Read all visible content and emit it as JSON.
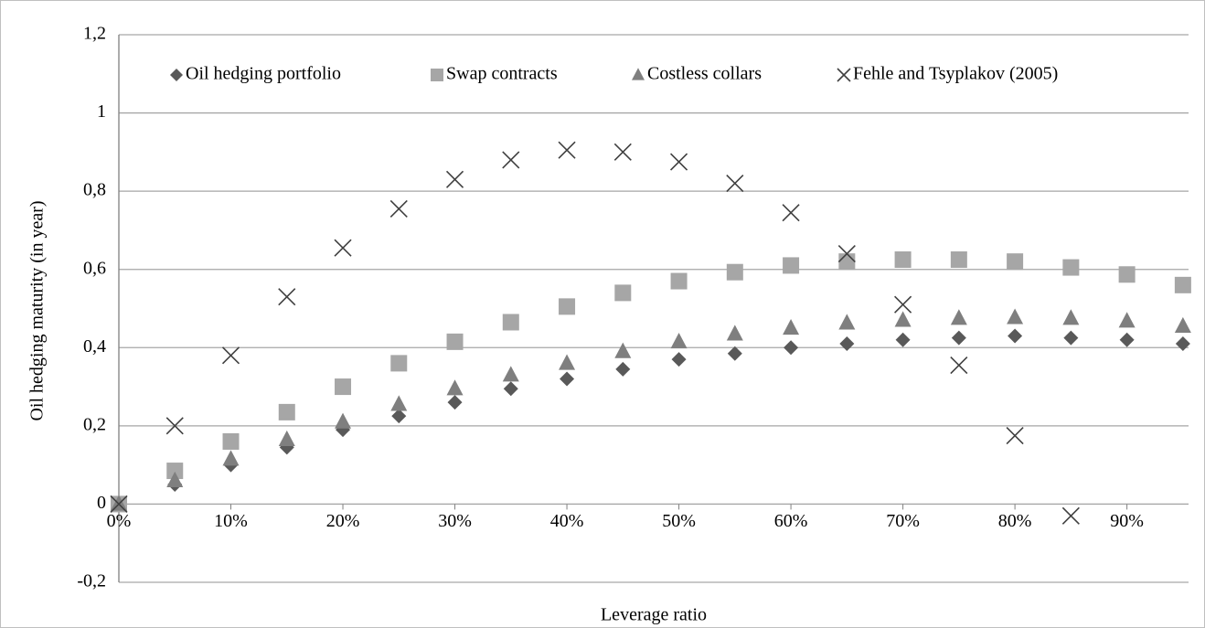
{
  "chart_data": {
    "type": "scatter",
    "xlabel": "Leverage ratio",
    "ylabel": "Oil hedging maturity (in year)",
    "x": [
      0,
      5,
      10,
      15,
      20,
      25,
      30,
      35,
      40,
      45,
      50,
      55,
      60,
      65,
      70,
      75,
      80,
      85,
      90,
      95
    ],
    "series": [
      {
        "name": "Oil hedging portfolio",
        "color": "#595959",
        "marker": "diamond",
        "values": [
          0,
          0.05,
          0.1,
          0.145,
          0.19,
          0.225,
          0.26,
          0.295,
          0.32,
          0.345,
          0.37,
          0.385,
          0.4,
          0.41,
          0.42,
          0.425,
          0.43,
          0.425,
          0.42,
          0.41
        ]
      },
      {
        "name": "Swap contracts",
        "color": "#a6a6a6",
        "marker": "square",
        "values": [
          0,
          0.085,
          0.16,
          0.235,
          0.3,
          0.36,
          0.415,
          0.465,
          0.505,
          0.54,
          0.57,
          0.593,
          0.61,
          0.62,
          0.625,
          0.625,
          0.62,
          0.605,
          0.587,
          0.56
        ]
      },
      {
        "name": "Costless collars",
        "color": "#7f7f7f",
        "marker": "triangle",
        "values": [
          0,
          0.06,
          0.115,
          0.165,
          0.21,
          0.255,
          0.295,
          0.33,
          0.36,
          0.39,
          0.415,
          0.435,
          0.45,
          0.463,
          0.47,
          0.475,
          0.477,
          0.475,
          0.468,
          0.455
        ]
      },
      {
        "name": "Fehle and Tsyplakov (2005)",
        "color": "#404040",
        "marker": "x",
        "values": [
          0,
          0.2,
          0.38,
          0.53,
          0.655,
          0.755,
          0.83,
          0.88,
          0.905,
          0.9,
          0.875,
          0.82,
          0.745,
          0.64,
          0.51,
          0.355,
          0.175,
          -0.03,
          null,
          null
        ]
      }
    ],
    "xlim": [
      0,
      95.5
    ],
    "ylim": [
      -0.2,
      1.2
    ],
    "xticks": [
      {
        "value": 0,
        "label": "0%"
      },
      {
        "value": 10,
        "label": "10%"
      },
      {
        "value": 20,
        "label": "20%"
      },
      {
        "value": 30,
        "label": "30%"
      },
      {
        "value": 40,
        "label": "40%"
      },
      {
        "value": 50,
        "label": "50%"
      },
      {
        "value": 60,
        "label": "60%"
      },
      {
        "value": 70,
        "label": "70%"
      },
      {
        "value": 80,
        "label": "80%"
      },
      {
        "value": 90,
        "label": "90%"
      }
    ],
    "yticks": [
      {
        "value": -0.2,
        "label": "-0,2"
      },
      0,
      {
        "value": 0.2,
        "label": "0,2"
      },
      {
        "value": 0.4,
        "label": "0,4"
      },
      {
        "value": 0.6,
        "label": "0,6"
      },
      {
        "value": 0.8,
        "label": "0,8"
      },
      1,
      {
        "value": 1.2,
        "label": "1,2"
      }
    ],
    "grid": true,
    "legend": "top"
  }
}
